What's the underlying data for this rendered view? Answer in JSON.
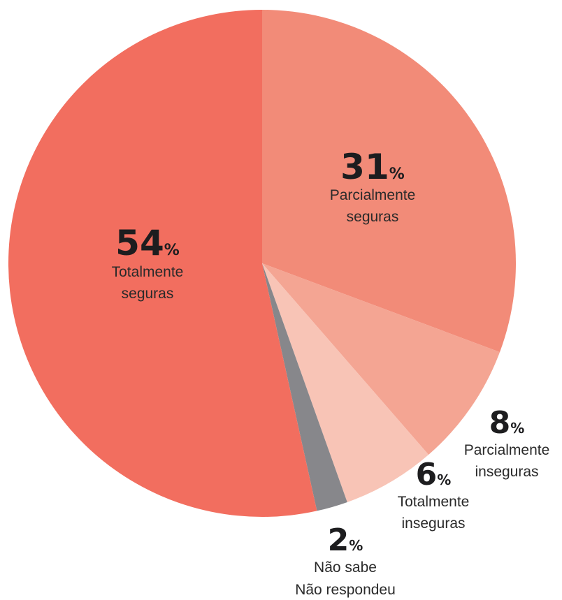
{
  "chart_data": {
    "type": "pie",
    "title": "",
    "start": "12 o'clock",
    "direction": "clockwise",
    "slices": [
      {
        "value": 31,
        "percent_label": "31",
        "unit": "%",
        "label_lines": [
          "Parcialmente",
          "seguras"
        ],
        "color": "#f28b78"
      },
      {
        "value": 8,
        "percent_label": "8",
        "unit": "%",
        "label_lines": [
          "Parcialmente",
          "inseguras"
        ],
        "color": "#f4a593"
      },
      {
        "value": 6,
        "percent_label": "6",
        "unit": "%",
        "label_lines": [
          "Totalmente",
          "inseguras"
        ],
        "color": "#f8c4b6"
      },
      {
        "value": 2,
        "percent_label": "2",
        "unit": "%",
        "label_lines": [
          "Não sabe",
          "Não respondeu"
        ],
        "color": "#87878b"
      },
      {
        "value": 54,
        "percent_label": "54",
        "unit": "%",
        "label_lines": [
          "Totalmente",
          "seguras"
        ],
        "color": "#f26e5f"
      }
    ]
  }
}
